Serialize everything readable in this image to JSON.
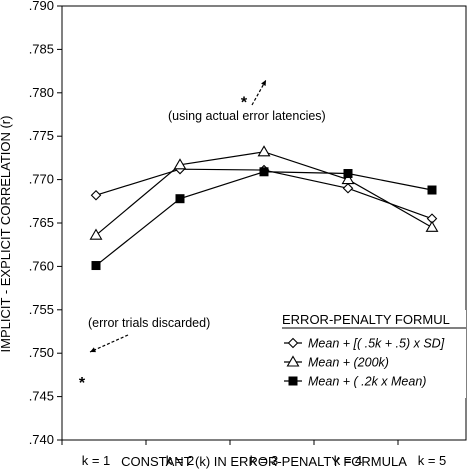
{
  "chart_data": {
    "type": "line",
    "title": "",
    "xlabel": "CONSTANT (k) IN ERROR-PENALTY FORMULA",
    "ylabel": "IMPLICIT - EXPLICIT CORRELATION (r)",
    "categories": [
      "k = 1",
      "k = 2",
      "k = 3",
      "k = 4",
      "k = 5"
    ],
    "ylim": [
      0.74,
      0.79
    ],
    "yticks": [
      ".740",
      ".745",
      ".750",
      ".755",
      ".760",
      ".765",
      ".770",
      ".775",
      ".780",
      ".785",
      ".790"
    ],
    "grid": false,
    "legend": {
      "title": "ERROR-PENALTY FORMUL",
      "placement": "bottom-right"
    },
    "series": [
      {
        "name": "Mean + [( .5k + .5) x SD]",
        "marker": "diamond",
        "values": [
          0.7682,
          0.7712,
          0.7711,
          0.769,
          0.7655
        ]
      },
      {
        "name": "Mean + (200k)",
        "marker": "triangle",
        "values": [
          0.7636,
          0.7717,
          0.7732,
          0.77,
          0.7645
        ]
      },
      {
        "name": "Mean + ( .2k x Mean)",
        "marker": "square",
        "values": [
          0.7601,
          0.7678,
          0.7709,
          0.7707,
          0.7688
        ]
      }
    ],
    "annotations": [
      {
        "text": "(using actual error latencies)",
        "star_at": {
          "category": "k = 3",
          "value": 0.779
        }
      },
      {
        "text": "(error trials discarded)",
        "star_at": {
          "category": "k = 1",
          "value": 0.7467
        }
      }
    ]
  }
}
